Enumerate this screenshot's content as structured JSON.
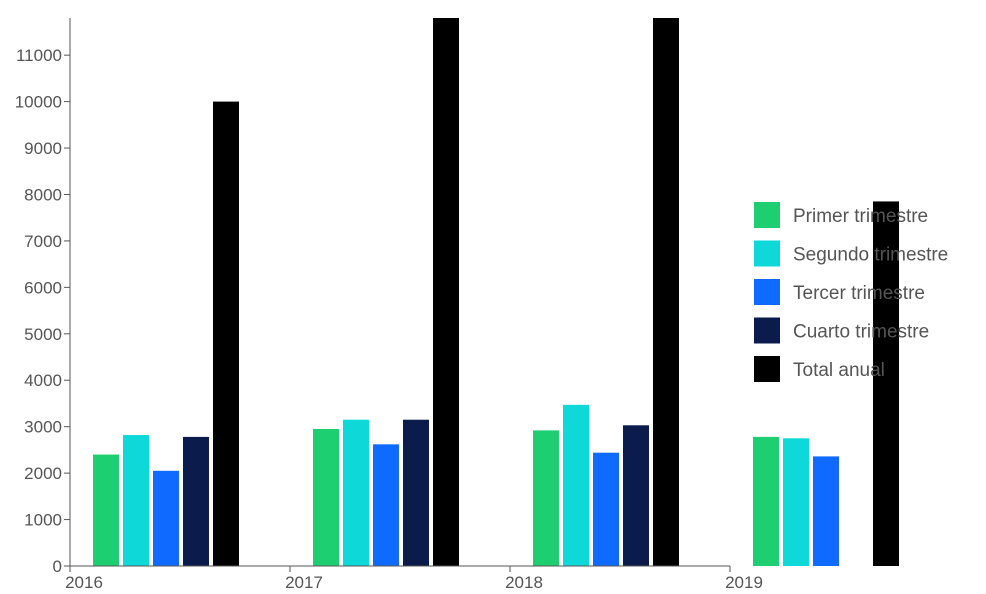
{
  "chart_data": {
    "type": "bar",
    "title": "",
    "xlabel": "",
    "ylabel": "",
    "categories": [
      "2016",
      "2017",
      "2018",
      "2019"
    ],
    "x_tick_labels": [
      "2016",
      "2017",
      "2018",
      "2019"
    ],
    "y_tick_labels": [
      "0",
      "1000",
      "2000",
      "3000",
      "4000",
      "5000",
      "6000",
      "7000",
      "8000",
      "9000",
      "10000",
      "11000"
    ],
    "ylim": [
      0,
      11800
    ],
    "grid": false,
    "legend_position": "right",
    "series": [
      {
        "name": "Primer trimestre",
        "color": "#1ecf72",
        "values": [
          2400,
          2950,
          2920,
          2780
        ]
      },
      {
        "name": "Segundo trimestre",
        "color": "#0ed8d8",
        "values": [
          2820,
          3150,
          3470,
          2750
        ]
      },
      {
        "name": "Tercer trimestre",
        "color": "#0f6bff",
        "values": [
          2050,
          2620,
          2440,
          2360
        ]
      },
      {
        "name": "Cuarto trimestre",
        "color": "#0b1c4c",
        "values": [
          2780,
          3150,
          3030,
          null
        ]
      },
      {
        "name": "Total anual",
        "color": "#000000",
        "values": [
          10000,
          11800,
          11800,
          7850
        ]
      }
    ]
  }
}
